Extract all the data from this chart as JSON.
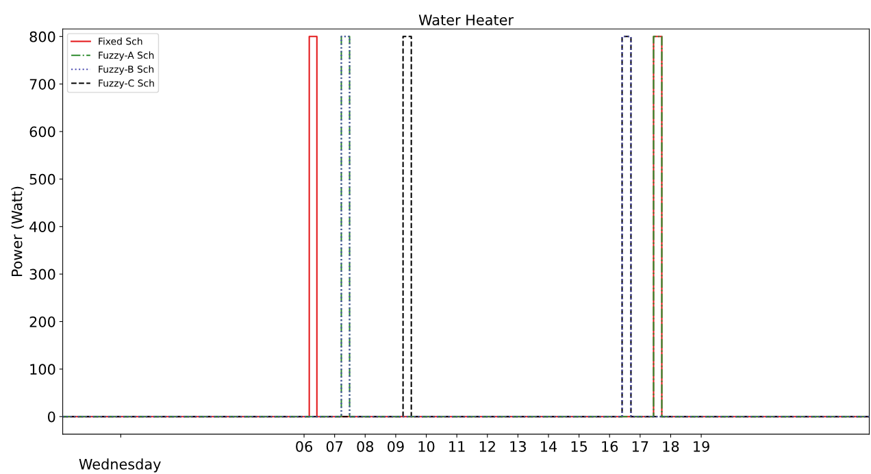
{
  "chart_data": {
    "type": "step",
    "title": "Water Heater",
    "xlabel": "Wednesday",
    "ylabel": "Power (Watt)",
    "xlim": [
      -1.9,
      24.5
    ],
    "ylim": [
      -37,
      816
    ],
    "xticks": [
      {
        "value": 0,
        "label": null
      },
      {
        "value": 6,
        "label": "06"
      },
      {
        "value": 7,
        "label": "07"
      },
      {
        "value": 8,
        "label": "08"
      },
      {
        "value": 9,
        "label": "09"
      },
      {
        "value": 10,
        "label": "10"
      },
      {
        "value": 11,
        "label": "11"
      },
      {
        "value": 12,
        "label": "12"
      },
      {
        "value": 13,
        "label": "13"
      },
      {
        "value": 14,
        "label": "14"
      },
      {
        "value": 15,
        "label": "15"
      },
      {
        "value": 16,
        "label": "16"
      },
      {
        "value": 17,
        "label": "17"
      },
      {
        "value": 18,
        "label": "18"
      },
      {
        "value": 19,
        "label": "19"
      }
    ],
    "yticks": [
      0,
      100,
      200,
      300,
      400,
      500,
      600,
      700,
      800
    ],
    "legend": "top left",
    "grid": false,
    "series": [
      {
        "name": "Fixed Sch",
        "color": "#e41a1c",
        "line_style": "solid",
        "x": [
          -1.9,
          6.17,
          6.42,
          17.44,
          17.71,
          24.5
        ],
        "values": [
          0,
          800,
          0,
          800,
          0,
          0
        ]
      },
      {
        "name": "Fuzzy-A Sch",
        "color": "#2e8b2e",
        "line_style": "dashdot",
        "x": [
          -1.9,
          7.22,
          7.49,
          17.44,
          17.71,
          24.5
        ],
        "values": [
          0,
          800,
          0,
          800,
          0,
          0
        ]
      },
      {
        "name": "Fuzzy-B Sch",
        "color": "#4b4bb0",
        "line_style": "dotted",
        "x": [
          -1.9,
          7.22,
          7.49,
          16.41,
          16.7,
          24.5
        ],
        "values": [
          0,
          800,
          0,
          800,
          0,
          0
        ]
      },
      {
        "name": "Fuzzy-C Sch",
        "color": "#000000",
        "line_style": "dashed",
        "x": [
          -1.9,
          9.24,
          9.51,
          16.41,
          16.7,
          24.5
        ],
        "values": [
          0,
          800,
          0,
          800,
          0,
          0
        ]
      }
    ]
  }
}
